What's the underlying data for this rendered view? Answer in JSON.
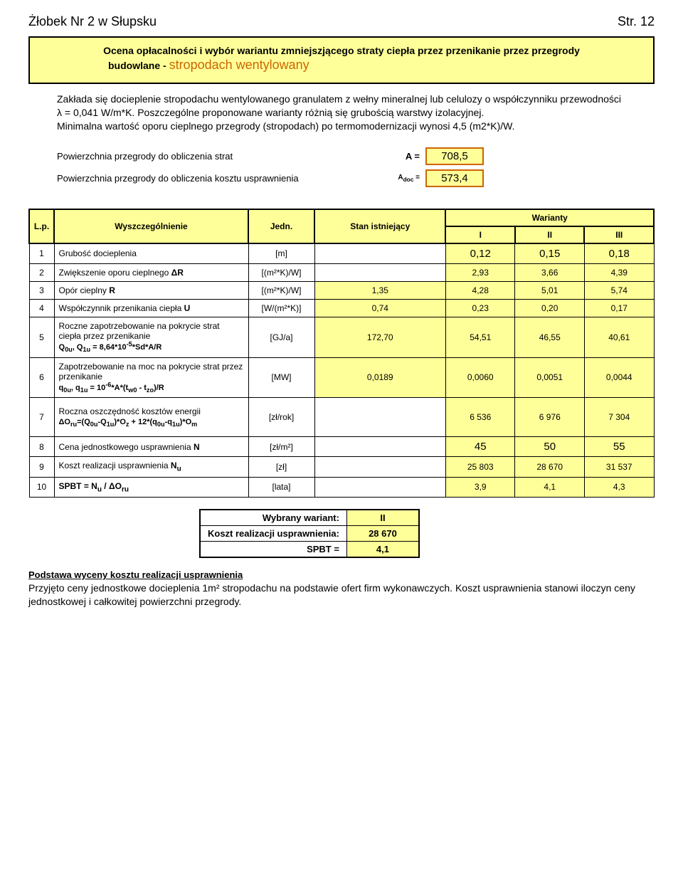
{
  "header": {
    "left": "Żłobek Nr 2 w Słupsku",
    "right": "Str. 12"
  },
  "titlebox": {
    "line1": "Ocena opłacalności i wybór wariantu zmniejszjącego straty ciepła przez przenikanie przez przegrody",
    "line2_prefix": "budowlane - ",
    "line2_accent": "stropodach wentylowany"
  },
  "description": "Zakłada się docieplenie stropodachu wentylowanego granulatem z wełny mineralnej lub celulozy o współczynniku przewodności λ = 0,041 W/m*K. Poszczególne proponowane warianty różnią się grubością warstwy izolacyjnej.\nMinimalna wartość oporu cieplnego przegrody (stropodach) po termomodernizacji wynosi 4,5 (m2*K)/W.",
  "areas": [
    {
      "label": "Powierzchnia przegrody do obliczenia strat",
      "eq": "A =",
      "value": "708,5"
    },
    {
      "label": "Powierzchnia przegrody do obliczenia kosztu usprawnienia",
      "eq": "Adoc =",
      "value": "573,4"
    }
  ],
  "table": {
    "head": {
      "lp": "L.p.",
      "wysz": "Wyszczególnienie",
      "jedn": "Jedn.",
      "stan": "Stan istniejący",
      "war": "Warianty",
      "w1": "I",
      "w2": "II",
      "w3": "III"
    },
    "rows": [
      {
        "n": "1",
        "name": "Grubość docieplenia",
        "unit": "[m]",
        "stan": "",
        "v": [
          "0,12",
          "0,15",
          "0,18"
        ],
        "big": true
      },
      {
        "n": "2",
        "name": "Zwiększenie oporu cieplnego ΔR",
        "unit": "[(m²*K)/W]",
        "stan": "",
        "v": [
          "2,93",
          "3,66",
          "4,39"
        ]
      },
      {
        "n": "3",
        "name": "Opór cieplny R",
        "unit": "[(m²*K)/W]",
        "stan": "1,35",
        "v": [
          "4,28",
          "5,01",
          "5,74"
        ]
      },
      {
        "n": "4",
        "name": "Współczynnik przenikania ciepła U",
        "unit": "[W/(m²*K)]",
        "stan": "0,74",
        "v": [
          "0,23",
          "0,20",
          "0,17"
        ]
      },
      {
        "n": "5",
        "name": "Roczne zapotrzebowanie na pokrycie strat ciepła przez przenikanie",
        "formula": "Q0u, Q1u = 8,64*10⁻⁵*Sd*A/R",
        "unit": "[GJ/a]",
        "stan": "172,70",
        "v": [
          "54,51",
          "46,55",
          "40,61"
        ]
      },
      {
        "n": "6",
        "name": "Zapotrzebowanie na moc na pokrycie strat przez przenikanie",
        "formula": "q0u, q1u = 10⁻⁶*A*(tw0 - tzo)/R",
        "unit": "[MW]",
        "stan": "0,0189",
        "v": [
          "0,0060",
          "0,0051",
          "0,0044"
        ]
      },
      {
        "n": "7",
        "name": "Roczna oszczędność kosztów energii",
        "formula": "ΔOru=(Q0u-Q1u)*Oz + 12*(q0u-q1u)*Om",
        "unit": "[zł/rok]",
        "stan": "",
        "v": [
          "6 536",
          "6 976",
          "7 304"
        ]
      },
      {
        "n": "8",
        "name": "Cena jednostkowego usprawnienia N",
        "unit": "[zł/m²]",
        "stan": "",
        "v": [
          "45",
          "50",
          "55"
        ],
        "big": true
      },
      {
        "n": "9",
        "name": "Koszt realizacji usprawnienia Nu",
        "unit": "[zł]",
        "stan": "",
        "v": [
          "25 803",
          "28 670",
          "31 537"
        ]
      },
      {
        "n": "10",
        "name": "SPBT = Nu / ΔOru",
        "unit": "[lata]",
        "stan": "",
        "v": [
          "3,9",
          "4,1",
          "4,3"
        ]
      }
    ]
  },
  "result": {
    "r1l": "Wybrany wariant:",
    "r1v": "II",
    "r2l": "Koszt realizacji usprawnienia:",
    "r2v": "28 670",
    "r3l": "SPBT =",
    "r3v": "4,1"
  },
  "footer": {
    "heading": "Podstawa wyceny kosztu realizacji usprawnienia",
    "text": "Przyjęto ceny jednostkowe docieplenia 1m² stropodachu na podstawie ofert firm wykonawczych. Koszt usprawnienia stanowi iloczyn ceny jednostkowej i całkowitej powierzchni przegrody."
  }
}
